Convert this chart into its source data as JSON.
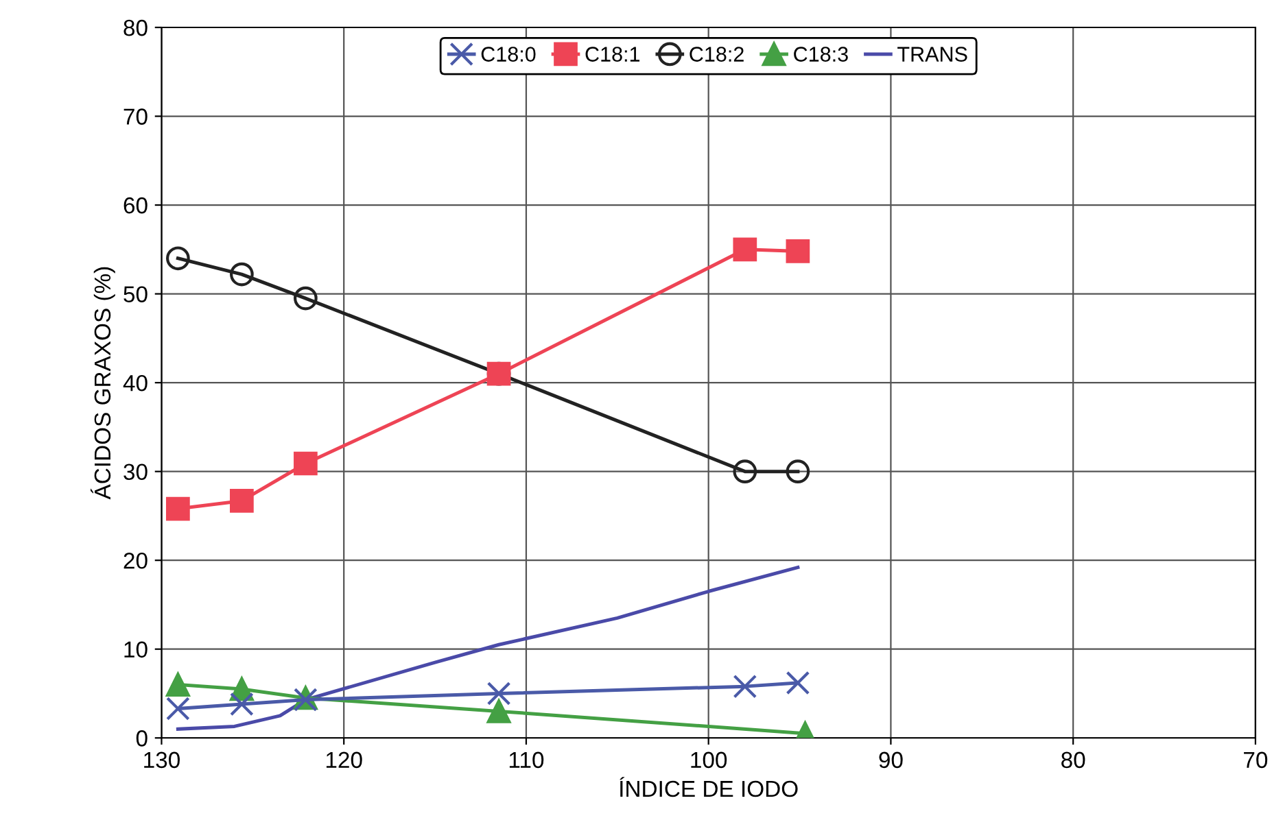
{
  "chart_data": {
    "type": "line",
    "xlabel": "ÍNDICE DE IODO",
    "ylabel": "ÁCIDOS GRAXOS (%)",
    "xlim": [
      130,
      70
    ],
    "xticks": [
      130,
      120,
      110,
      100,
      90,
      80,
      70
    ],
    "ylim": [
      0,
      80
    ],
    "yticks": [
      0,
      10,
      20,
      30,
      40,
      50,
      60,
      70,
      80
    ],
    "grid": true,
    "legend": "top",
    "line_style": "solid",
    "series": [
      {
        "name": "C18:0",
        "color": "#4a5aa8",
        "marker": "cross",
        "x": [
          129.1,
          125.6,
          122.1,
          111.5,
          98.0,
          95.1
        ],
        "values": [
          3.3,
          3.8,
          4.3,
          5.0,
          5.8,
          6.2
        ]
      },
      {
        "name": "C18:1",
        "color": "#ee4455",
        "marker": "square",
        "x": [
          129.1,
          125.6,
          122.1,
          111.5,
          98.0,
          95.1
        ],
        "values": [
          25.8,
          26.7,
          30.9,
          41.0,
          55.0,
          54.8
        ]
      },
      {
        "name": "C18:2",
        "color": "#222222",
        "marker": "circle",
        "x": [
          129.1,
          125.6,
          122.1,
          111.5,
          98.0,
          95.1
        ],
        "values": [
          54.0,
          52.2,
          49.5,
          41.0,
          30.0,
          30.0
        ]
      },
      {
        "name": "C18:3",
        "color": "#44a044",
        "marker": "triangle",
        "x": [
          129.1,
          125.6,
          122.1,
          111.5,
          94.7
        ],
        "values": [
          6.0,
          5.5,
          4.5,
          3.0,
          0.5
        ]
      },
      {
        "name": "TRANS",
        "color": "#4a4aa8",
        "marker": "none",
        "x": [
          129.1,
          126.0,
          123.5,
          122.1,
          115.0,
          111.5,
          105.0,
          100.0,
          95.1
        ],
        "values": [
          1.0,
          1.3,
          2.5,
          4.3,
          8.5,
          10.5,
          13.5,
          16.5,
          19.2
        ]
      }
    ]
  }
}
